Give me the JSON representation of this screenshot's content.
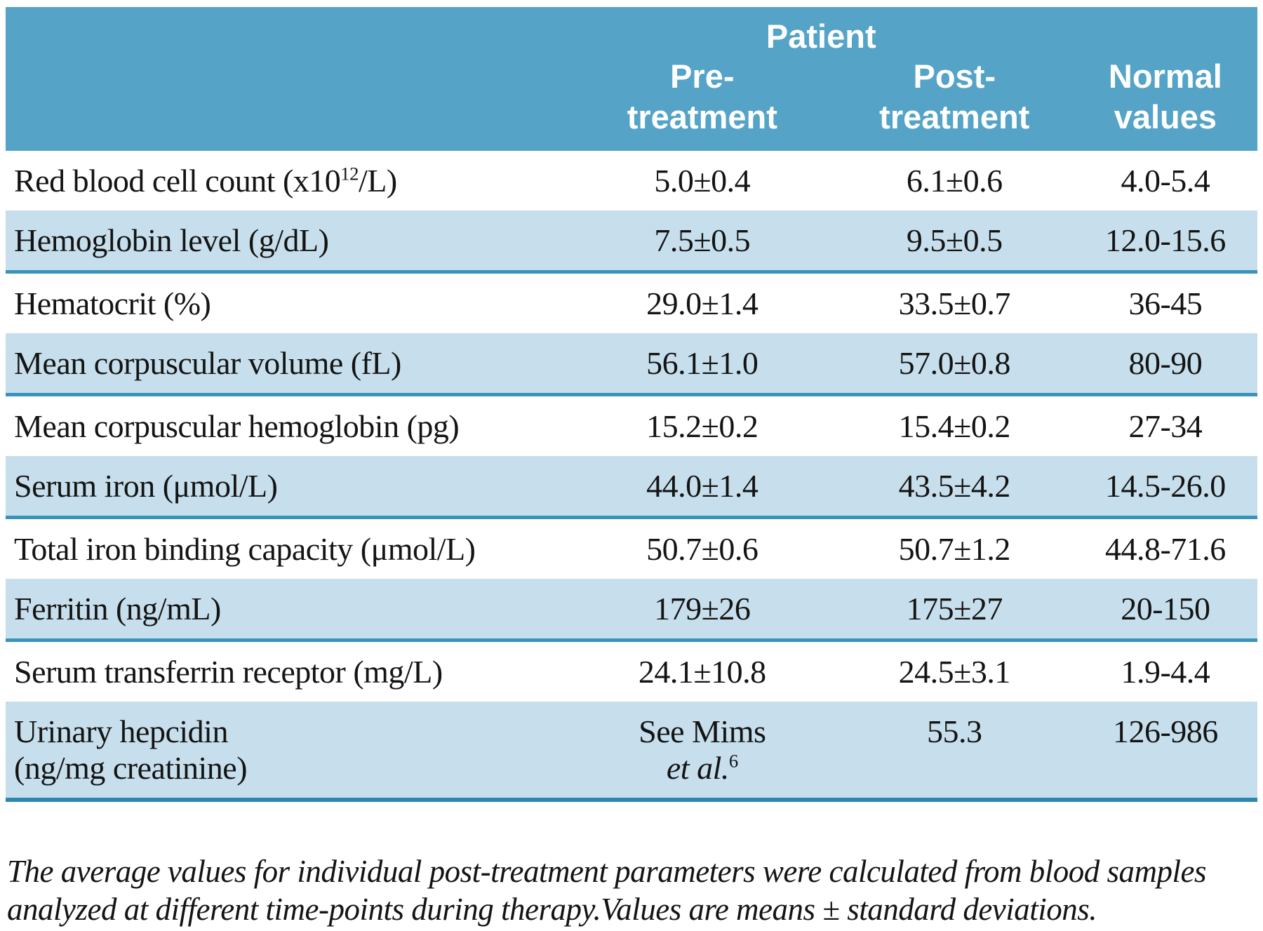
{
  "table": {
    "header": {
      "patient_label": "Patient",
      "columns": [
        {
          "line1": "Pre-",
          "line2": "treatment"
        },
        {
          "line1": "Post-",
          "line2": "treatment"
        },
        {
          "line1": "Normal",
          "line2": "values"
        }
      ]
    },
    "rows": [
      {
        "label_main": "Red blood cell count (x10",
        "label_sup": "12",
        "label_end": "/L)",
        "pre": "5.0±0.4",
        "post": "6.1±0.6",
        "normal": "4.0-5.4"
      },
      {
        "label_main": "Hemoglobin level (g/dL)",
        "pre": "7.5±0.5",
        "post": "9.5±0.5",
        "normal": "12.0-15.6"
      },
      {
        "label_main": "Hematocrit (%)",
        "pre": "29.0±1.4",
        "post": "33.5±0.7",
        "normal": "36-45"
      },
      {
        "label_main": "Mean corpuscular volume (fL)",
        "pre": "56.1±1.0",
        "post": "57.0±0.8",
        "normal": "80-90"
      },
      {
        "label_main": "Mean corpuscular hemoglobin (pg)",
        "pre": "15.2±0.2",
        "post": "15.4±0.2",
        "normal": "27-34"
      },
      {
        "label_main": "Serum iron (μmol/L)",
        "pre": "44.0±1.4",
        "post": "43.5±4.2",
        "normal": "14.5-26.0"
      },
      {
        "label_main": "Total iron binding capacity (μmol/L)",
        "pre": "50.7±0.6",
        "post": "50.7±1.2",
        "normal": "44.8-71.6"
      },
      {
        "label_main": "Ferritin (ng/mL)",
        "pre": "179±26",
        "post": "175±27",
        "normal": "20-150"
      },
      {
        "label_main": "Serum transferrin receptor (mg/L)",
        "pre": "24.1±10.8",
        "post": "24.5±3.1",
        "normal": "1.9-4.4"
      },
      {
        "label_main": "Urinary hepcidin",
        "label_line2": "(ng/mg creatinine)",
        "pre": "See Mims",
        "pre_line2": "et al.",
        "pre_sup": "6",
        "post": "55.3",
        "normal": "126-986"
      }
    ],
    "footnote_line1": "The average values for individual post-treatment parameters were calculated from blood samples",
    "footnote_line2": "analyzed at different time-points during therapy.Values are means ± standard deviations.",
    "colors": {
      "header_bg": "#55a4c7",
      "shaded_row_bg": "#c7dfec",
      "divider": "#3a93bb",
      "bottom_rule": "#2f86ae",
      "header_text": "#ffffff",
      "body_text": "#141414"
    }
  }
}
